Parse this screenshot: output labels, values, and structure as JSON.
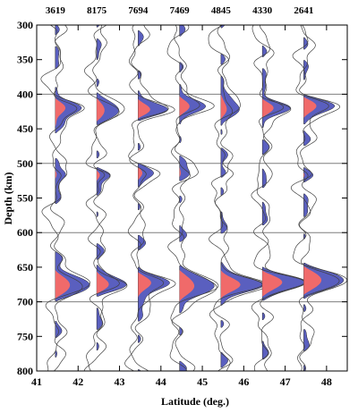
{
  "chart_data": {
    "type": "line",
    "xlabel": "Latitude (deg.)",
    "ylabel": "Depth (km)",
    "xlim": [
      41,
      48.5
    ],
    "ylim": [
      300,
      800
    ],
    "y_inverted": true,
    "x_ticks": [
      "41",
      "42",
      "43",
      "44",
      "45",
      "46",
      "47",
      "48"
    ],
    "y_ticks": [
      "300",
      "350",
      "400",
      "450",
      "500",
      "550",
      "600",
      "650",
      "700",
      "750",
      "800"
    ],
    "reference_depths": [
      400,
      500,
      600,
      700
    ],
    "grid": false,
    "colors": {
      "positive_fill": "#5a5fbf",
      "uncertainty_fill": "#f06a6a",
      "trace": "#404040",
      "reference_line": "#7f7f7f"
    },
    "series": [
      {
        "name": "3619",
        "x": 41.45,
        "peaks": [
          {
            "depth": 421,
            "amp": 0.75
          },
          {
            "depth": 515,
            "amp": 0.4
          },
          {
            "depth": 675,
            "amp": 1.05
          }
        ]
      },
      {
        "name": "8175",
        "x": 42.45,
        "peaks": [
          {
            "depth": 420,
            "amp": 0.6
          },
          {
            "depth": 515,
            "amp": 0.3
          },
          {
            "depth": 673,
            "amp": 0.8
          }
        ]
      },
      {
        "name": "7694",
        "x": 43.45,
        "peaks": [
          {
            "depth": 422,
            "amp": 0.65
          },
          {
            "depth": 515,
            "amp": 0.3
          },
          {
            "depth": 675,
            "amp": 0.9
          }
        ]
      },
      {
        "name": "7469",
        "x": 44.45,
        "peaks": [
          {
            "depth": 421,
            "amp": 0.7
          },
          {
            "depth": 515,
            "amp": 0.25
          },
          {
            "depth": 675,
            "amp": 1.1
          }
        ]
      },
      {
        "name": "4845",
        "x": 45.45,
        "peaks": [
          {
            "depth": 420,
            "amp": 0.7
          },
          {
            "depth": 515,
            "amp": 0.2
          },
          {
            "depth": 673,
            "amp": 1.1
          }
        ]
      },
      {
        "name": "4330",
        "x": 46.45,
        "peaks": [
          {
            "depth": 418,
            "amp": 0.8
          },
          {
            "depth": 515,
            "amp": 0.2
          },
          {
            "depth": 673,
            "amp": 1.05
          }
        ]
      },
      {
        "name": "2641",
        "x": 47.45,
        "peaks": [
          {
            "depth": 418,
            "amp": 0.8
          },
          {
            "depth": 515,
            "amp": 0.2
          },
          {
            "depth": 671,
            "amp": 1.1
          }
        ]
      }
    ]
  }
}
